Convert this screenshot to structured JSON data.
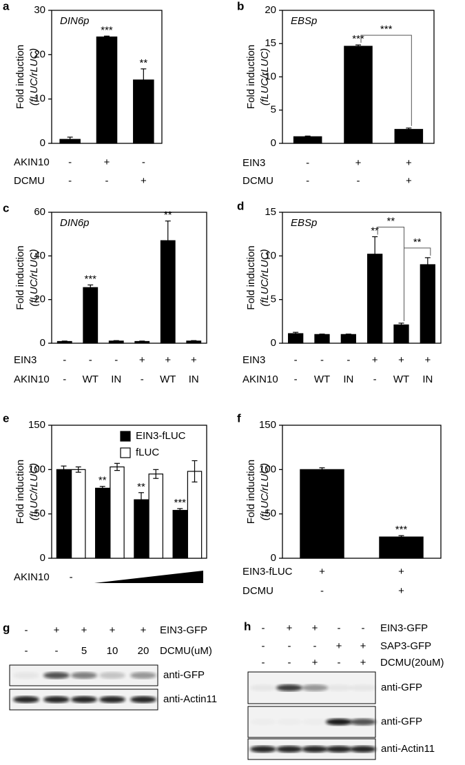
{
  "chart_data": [
    {
      "type": "bar",
      "panel": "a",
      "annotation": "DIN6p",
      "ylabel": [
        "Fold induction",
        "(fLUC/rLUC)"
      ],
      "values": [
        0.9,
        24,
        14.3
      ],
      "errors": [
        0.5,
        0.2,
        2.5
      ],
      "significance": [
        null,
        "***",
        "**"
      ],
      "color": "#000000",
      "ylim": [
        0,
        30
      ],
      "yticks": [
        0,
        10,
        20,
        30
      ],
      "conditions": [
        {
          "name": "AKIN10",
          "labels": [
            "-",
            "+",
            "-"
          ]
        },
        {
          "name": "DCMU",
          "labels": [
            "-",
            "-",
            "+"
          ]
        }
      ]
    },
    {
      "type": "bar",
      "panel": "b",
      "annotation": "EBSp",
      "ylabel": [
        "Fold induction",
        "(fLUC/rLUC)"
      ],
      "values": [
        1,
        14.6,
        2.1
      ],
      "errors": [
        0.1,
        0.2,
        0.2
      ],
      "significance": [
        null,
        "***",
        null
      ],
      "color": "#000000",
      "brackets": [
        {
          "from": 1,
          "to": 2,
          "label": "***"
        }
      ],
      "ylim": [
        0,
        20
      ],
      "yticks": [
        0,
        5,
        10,
        15,
        20
      ],
      "conditions": [
        {
          "name": "EIN3",
          "labels": [
            "-",
            "+",
            "+"
          ]
        },
        {
          "name": "DCMU",
          "labels": [
            "-",
            "-",
            "+"
          ]
        }
      ]
    },
    {
      "type": "bar",
      "panel": "c",
      "annotation": "DIN6p",
      "ylabel": [
        "Fold induction",
        "(fLUC/rLUC)"
      ],
      "values": [
        0.8,
        25.5,
        1,
        0.8,
        47,
        1
      ],
      "errors": [
        0.2,
        1.2,
        0.2,
        0.2,
        9,
        0.2
      ],
      "significance": [
        null,
        "***",
        null,
        null,
        "**",
        null
      ],
      "color": "#000000",
      "ylim": [
        0,
        60
      ],
      "yticks": [
        0,
        20,
        40,
        60
      ],
      "conditions": [
        {
          "name": "EIN3",
          "labels": [
            "-",
            "-",
            "-",
            "+",
            "+",
            "+"
          ]
        },
        {
          "name": "AKIN10",
          "labels": [
            "-",
            "WT",
            "IN",
            "-",
            "WT",
            "IN"
          ]
        }
      ]
    },
    {
      "type": "bar",
      "panel": "d",
      "annotation": "EBSp",
      "ylabel": [
        "Fold induction",
        "(fLUC/rLUC)"
      ],
      "values": [
        1.1,
        1,
        1,
        10.2,
        2.1,
        9
      ],
      "errors": [
        0.15,
        0.05,
        0.05,
        2,
        0.2,
        0.8
      ],
      "significance": [
        null,
        null,
        null,
        "**",
        null,
        null
      ],
      "color": "#000000",
      "brackets": [
        {
          "from": 3,
          "to": 4,
          "label": "**"
        },
        {
          "from": 4,
          "to": 5,
          "label": "**"
        }
      ],
      "ylim": [
        0,
        15
      ],
      "yticks": [
        0,
        5,
        10,
        15
      ],
      "conditions": [
        {
          "name": "EIN3",
          "labels": [
            "-",
            "-",
            "-",
            "+",
            "+",
            "+"
          ]
        },
        {
          "name": "AKIN10",
          "labels": [
            "-",
            "WT",
            "IN",
            "-",
            "WT",
            "IN"
          ]
        }
      ]
    },
    {
      "type": "bar",
      "panel": "e",
      "ylabel": [
        "Fold induction",
        "(fLUC/rLUC)"
      ],
      "legend": "upper right",
      "series": [
        {
          "name": "EIN3-fLUC",
          "color": "#000000",
          "values": [
            100,
            79,
            66,
            54
          ],
          "errors": [
            4,
            2,
            8,
            2
          ],
          "significance": [
            null,
            "**",
            "**",
            "***"
          ]
        },
        {
          "name": "fLUC",
          "color": "#ffffff",
          "values": [
            100,
            103,
            95,
            98
          ],
          "errors": [
            3,
            4,
            5,
            12
          ],
          "significance": [
            null,
            null,
            null,
            null
          ]
        }
      ],
      "ylim": [
        0,
        150
      ],
      "yticks": [
        0,
        50,
        100,
        150
      ],
      "conditions": [
        {
          "name": "AKIN10",
          "labels": [
            "-",
            null,
            null,
            null
          ]
        }
      ]
    },
    {
      "type": "bar",
      "panel": "f",
      "ylabel": [
        "Fold induction",
        "(fLUC/rLUC)"
      ],
      "values": [
        100,
        24
      ],
      "errors": [
        2,
        1.5
      ],
      "significance": [
        null,
        "***"
      ],
      "color": "#000000",
      "ylim": [
        0,
        150
      ],
      "yticks": [
        0,
        50,
        100,
        150
      ],
      "conditions": [
        {
          "name": "EIN3-fLUC",
          "labels": [
            "+",
            "+"
          ]
        },
        {
          "name": "DCMU",
          "labels": [
            "-",
            "+"
          ]
        }
      ]
    }
  ],
  "blots": [
    {
      "panel": "g",
      "conditions": [
        {
          "name": "EIN3-GFP",
          "labels": [
            "-",
            "+",
            "+",
            "+",
            "+"
          ]
        },
        {
          "name": "DCMU(uM)",
          "labels": [
            "-",
            "-",
            "5",
            "10",
            "20"
          ]
        }
      ],
      "bands": [
        "anti-GFP",
        "anti-Actin11"
      ]
    },
    {
      "panel": "h",
      "conditions": [
        {
          "name": "EIN3-GFP",
          "labels": [
            "-",
            "+",
            "+",
            "-",
            "-"
          ]
        },
        {
          "name": "SAP3-GFP",
          "labels": [
            "-",
            "-",
            "-",
            "+",
            "+"
          ]
        },
        {
          "name": "DCMU(20uM)",
          "labels": [
            "-",
            "-",
            "+",
            "-",
            "+"
          ]
        }
      ],
      "bands": [
        "anti-GFP",
        "anti-GFP",
        "anti-Actin11"
      ]
    }
  ]
}
